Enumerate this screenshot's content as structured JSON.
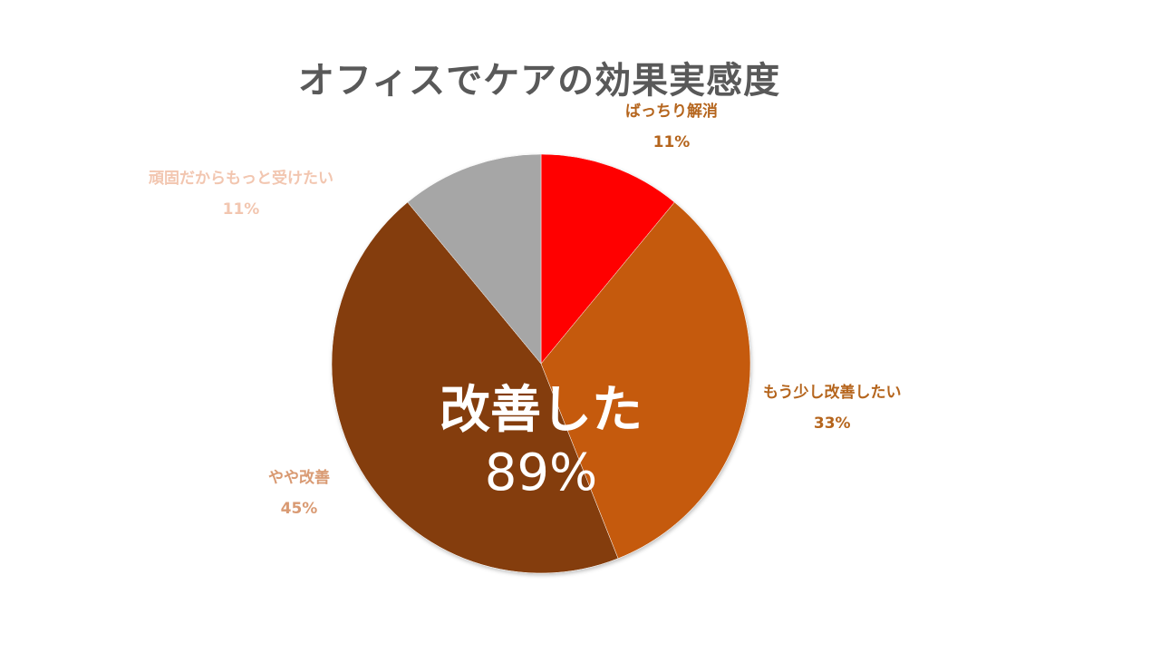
{
  "chart_data": {
    "type": "pie",
    "title": "オフィスでケアの効果実感度",
    "center_label": "改善した",
    "center_value": "89%",
    "slices": [
      {
        "label": "ばっちり解消",
        "value": 11,
        "display": "11%",
        "color": "#FF0000",
        "label_color": "#B5651D"
      },
      {
        "label": "もう少し改善したい",
        "value": 33,
        "display": "33%",
        "color": "#C55A11",
        "label_color": "#B5651D"
      },
      {
        "label": "やや改善",
        "value": 45,
        "display": "45%",
        "color": "#843C0C",
        "label_color": "#D99A73"
      },
      {
        "label": "頑固だからもっと受けたい",
        "value": 11,
        "display": "11%",
        "color": "#A6A6A6",
        "label_color": "#F2C6B0"
      }
    ],
    "legend": "none"
  }
}
